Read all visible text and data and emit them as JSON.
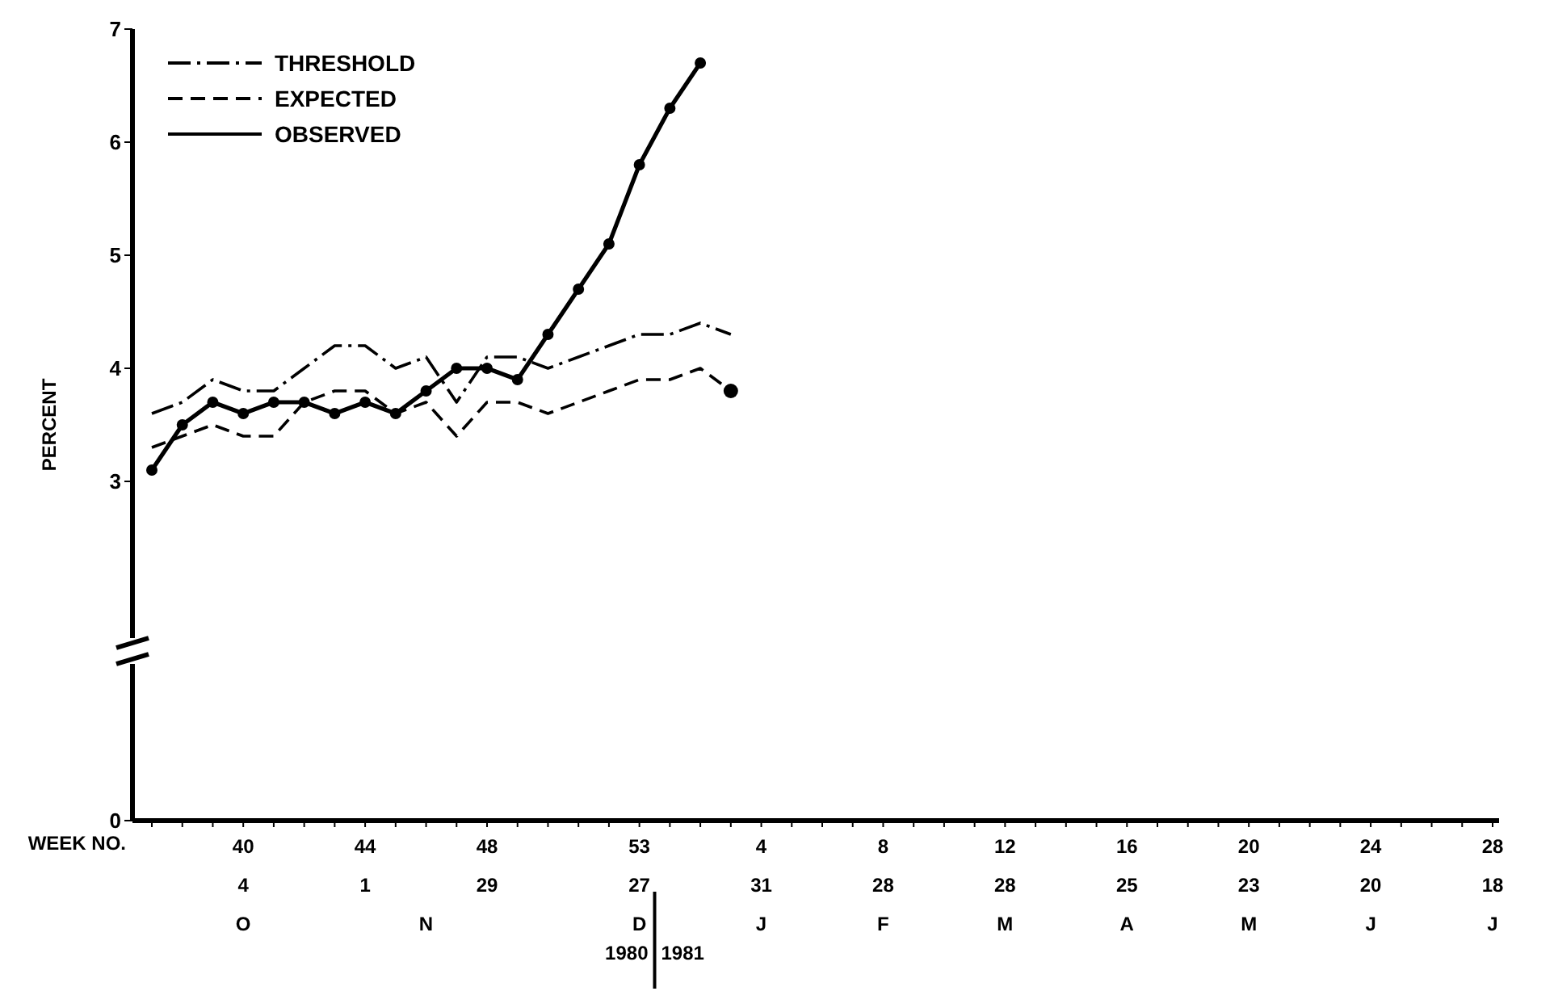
{
  "chart_data": {
    "type": "line",
    "ylabel": "PERCENT",
    "xlabel": "WEEK NO.",
    "categories": [
      null,
      null,
      null,
      "40\n4\nO",
      null,
      null,
      null,
      "44\n1",
      null,
      "\n\nN",
      null,
      "48\n29",
      null,
      null,
      null,
      null,
      "53\n27\nD",
      null,
      null,
      null,
      "4\n31\nJ",
      null,
      null,
      null,
      "8\n28\nF",
      null,
      null,
      null,
      "12\n28\nM",
      null,
      null,
      null,
      "16\n25\nA",
      null,
      null,
      null,
      "20\n23\nM",
      null,
      null,
      null,
      "24\n20\nJ",
      null,
      null,
      null,
      "28\n18\nJ"
    ],
    "series": [
      {
        "name": "THRESHOLD",
        "color": "#000000",
        "line_style": "dotted",
        "marker": "none",
        "values": [
          3.6,
          3.7,
          3.9,
          3.8,
          3.8,
          4.0,
          4.2,
          4.2,
          4.0,
          4.1,
          3.7,
          4.1,
          4.1,
          4.0,
          4.1,
          4.2,
          4.3,
          4.3,
          4.4,
          4.3,
          null,
          null,
          null,
          null,
          null,
          null,
          null,
          null,
          null,
          null,
          null,
          null,
          null,
          null,
          null,
          null,
          null,
          null,
          null,
          null,
          null,
          null,
          null,
          null,
          null
        ]
      },
      {
        "name": "EXPECTED",
        "color": "#000000",
        "line_style": "dashed",
        "marker": "none",
        "values": [
          3.3,
          3.4,
          3.5,
          3.4,
          3.4,
          3.7,
          3.8,
          3.8,
          3.6,
          3.7,
          3.4,
          3.7,
          3.7,
          3.6,
          3.7,
          3.8,
          3.9,
          3.9,
          4.0,
          3.8,
          null,
          null,
          null,
          null,
          null,
          null,
          null,
          null,
          null,
          null,
          null,
          null,
          null,
          null,
          null,
          null,
          null,
          null,
          null,
          null,
          null,
          null,
          null,
          null,
          null
        ]
      },
      {
        "name": "OBSERVED",
        "color": "#000000",
        "line_style": "solid",
        "marker": "circle",
        "values": [
          3.1,
          3.5,
          3.7,
          3.6,
          3.7,
          3.7,
          3.6,
          3.7,
          3.6,
          3.8,
          4.0,
          4.0,
          3.9,
          4.3,
          4.7,
          5.1,
          5.8,
          6.3,
          6.7,
          null,
          null,
          null,
          null,
          null,
          null,
          null,
          null,
          null,
          null,
          null,
          null,
          null,
          null,
          null,
          null,
          null,
          null,
          null,
          null,
          null,
          null,
          null,
          null,
          null,
          null
        ]
      },
      {
        "type": "scatter",
        "color": "#000000",
        "marker": "circle",
        "values": [
          null,
          null,
          null,
          null,
          null,
          null,
          null,
          null,
          null,
          null,
          null,
          null,
          null,
          null,
          null,
          null,
          null,
          null,
          null,
          3.8,
          null,
          null,
          null,
          null,
          null,
          null,
          null,
          null,
          null,
          null,
          null,
          null,
          null,
          null,
          null,
          null,
          null,
          null,
          null,
          null,
          null,
          null,
          null,
          null,
          null
        ]
      }
    ],
    "ylim": [
      0,
      7
    ],
    "yticks": [
      0,
      3,
      4,
      5,
      6,
      7
    ],
    "grid": false,
    "legend": "top left",
    "annotations": [
      "1980",
      "1981"
    ]
  }
}
